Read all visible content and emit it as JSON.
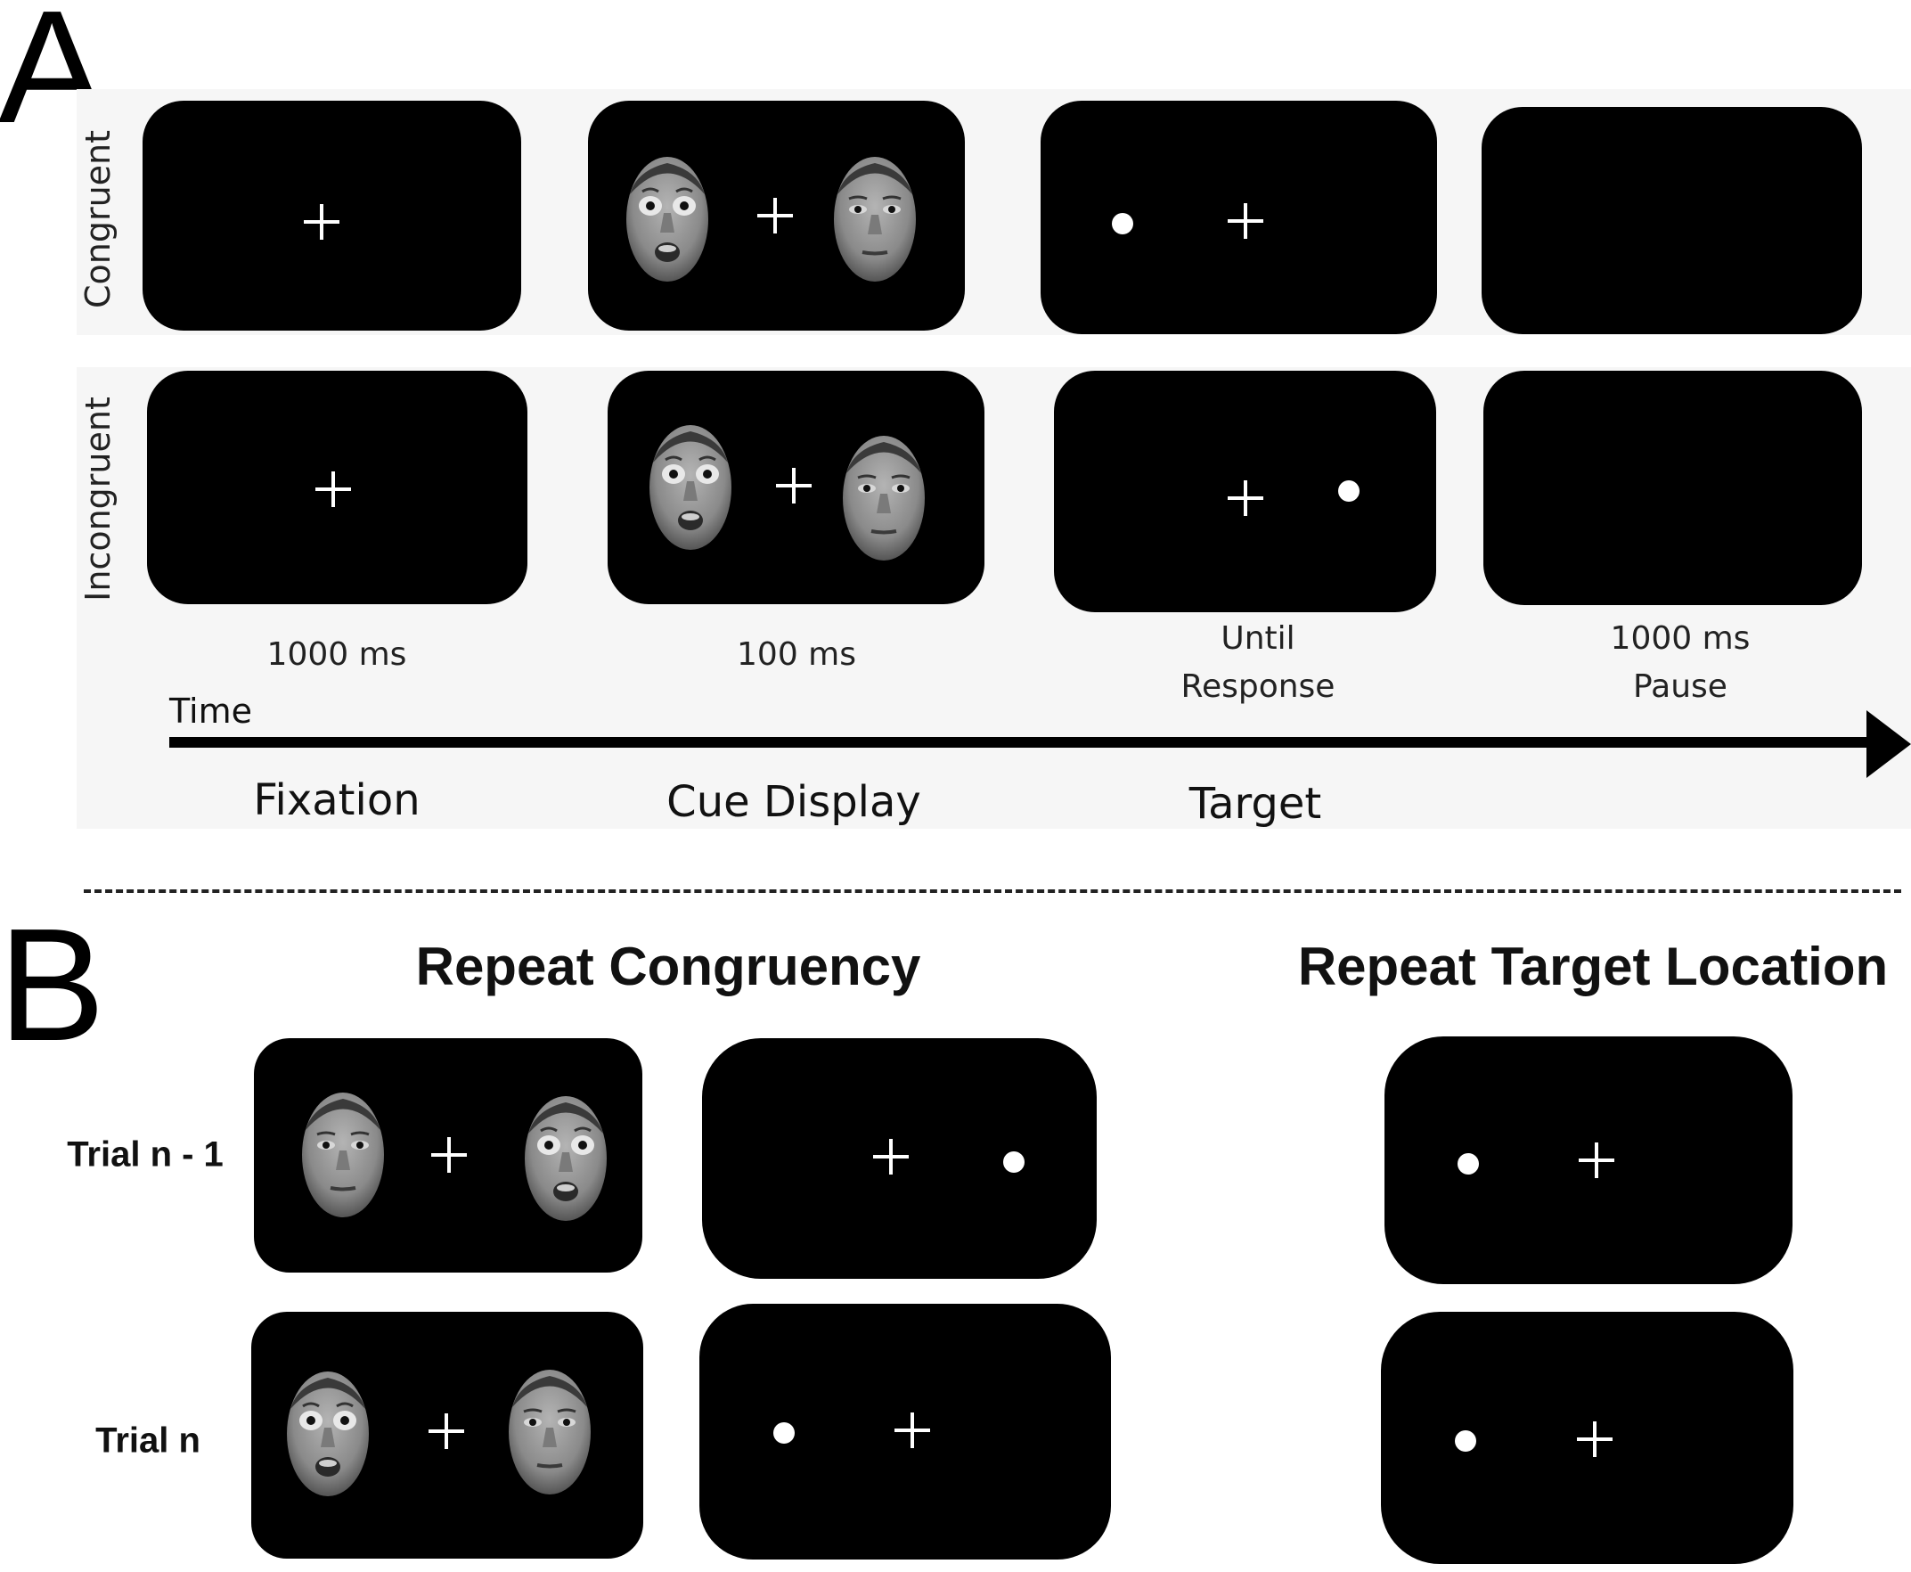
{
  "panel_a": {
    "letter": "A",
    "row_labels": [
      "Congruent",
      "Incongruent"
    ],
    "durations": [
      "1000 ms",
      "100 ms",
      "Until\nResponse",
      "1000 ms\nPause"
    ],
    "time_label": "Time",
    "phases": [
      "Fixation",
      "Cue Display",
      "Target"
    ]
  },
  "panel_b": {
    "letter": "B",
    "headings": [
      "Repeat Congruency",
      "Repeat Target Location"
    ],
    "trial_labels": [
      "Trial n - 1",
      "Trial n"
    ]
  },
  "colors": {
    "screen": "#000000",
    "stimulus": "#ffffff",
    "background_band": "#f6f6f6"
  },
  "icons": [
    "fixation-cross-icon",
    "target-dot-icon",
    "fearful-face-icon",
    "neutral-face-icon",
    "time-arrow-icon"
  ]
}
